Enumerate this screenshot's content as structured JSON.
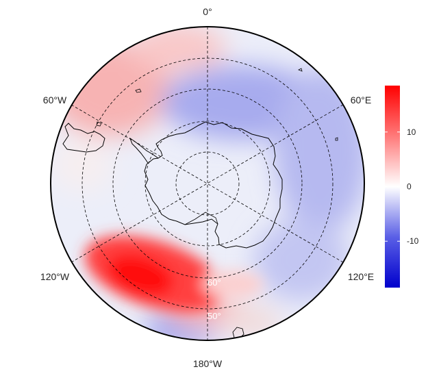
{
  "map": {
    "projection": "south-polar-stereographic",
    "longitude_labels": {
      "top": "0°",
      "left_upper": "60°W",
      "right_upper": "60°E",
      "left_lower": "120°W",
      "right_lower": "120°E",
      "bottom": "180°W"
    },
    "latitude_labels": [
      "60°",
      "50°"
    ],
    "graticule": "dashed"
  },
  "colorbar": {
    "ticks": [
      "10",
      "0",
      "-10"
    ],
    "tick_values": [
      10,
      0,
      -10
    ],
    "range": [
      -18.5,
      18.5
    ],
    "colors": {
      "low": "#0000cc",
      "mid": "#ffffff",
      "high": "#ff0000"
    }
  },
  "colors": {
    "ocean_background": "#eceef9",
    "coast": "#000000",
    "frame": "#000000"
  }
}
